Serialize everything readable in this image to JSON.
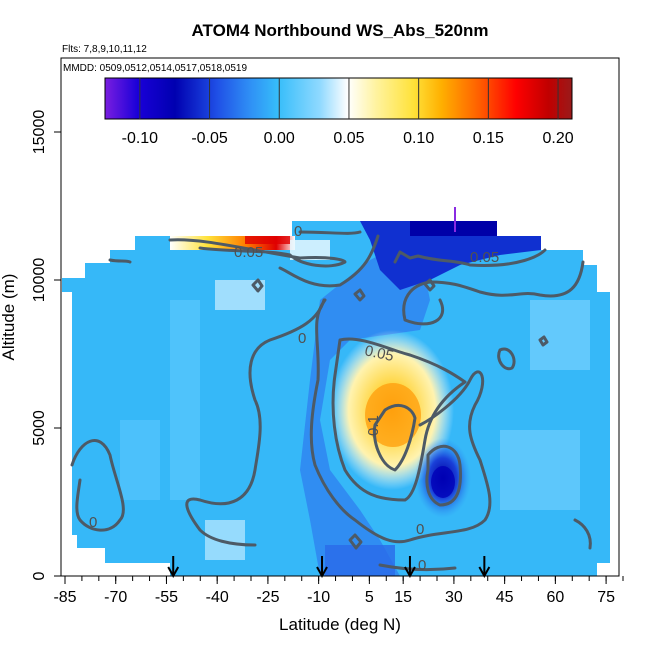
{
  "chart_data": {
    "type": "heatmap",
    "title": "ATOM4 Northbound WS_Abs_520nm",
    "subtitle_flights": "Flts: 7,8,9,10,11,12",
    "subtitle_dates": "MMDD: 0509,0512,0514,0517,0518,0519",
    "xlabel": "Latitude (deg N)",
    "ylabel": "Altitude (m)",
    "x_ticks": [
      -85,
      -70,
      -55,
      -40,
      -25,
      -10,
      5,
      15,
      30,
      45,
      60,
      75
    ],
    "x_tick_labels": [
      "-85",
      "-70",
      "-55",
      "-40",
      "-25",
      "-10",
      "5",
      "15",
      "30",
      "45",
      "60",
      "75"
    ],
    "y_ticks": [
      0,
      5000,
      10000,
      15000
    ],
    "y_tick_labels": [
      "0",
      "5000",
      "10000",
      "15000"
    ],
    "xlim": [
      -85,
      80
    ],
    "ylim": [
      0,
      17500
    ],
    "colorbar": {
      "min": -0.125,
      "max": 0.21,
      "ticks": [
        -0.1,
        -0.05,
        0.0,
        0.05,
        0.1,
        0.15,
        0.2
      ],
      "tick_labels": [
        "-0.10",
        "-0.05",
        "0.00",
        "0.05",
        "0.10",
        "0.15",
        "0.20"
      ],
      "colors": [
        "#7a1ee0",
        "#1a00d8",
        "#0000b0",
        "#1f4fe6",
        "#2f8ff5",
        "#36bdfa",
        "#8fd9ff",
        "#ffffff",
        "#fff3a0",
        "#ffe23a",
        "#ffb000",
        "#ff6000",
        "#ff0000",
        "#c00000",
        "#9a1a1a"
      ]
    },
    "contour_labels": [
      "0",
      "0.05",
      "0.1",
      "0",
      "0",
      "0",
      "0.05",
      "0.05",
      "0"
    ],
    "profile_arrows_lat": [
      -53,
      -9,
      17,
      39
    ]
  }
}
